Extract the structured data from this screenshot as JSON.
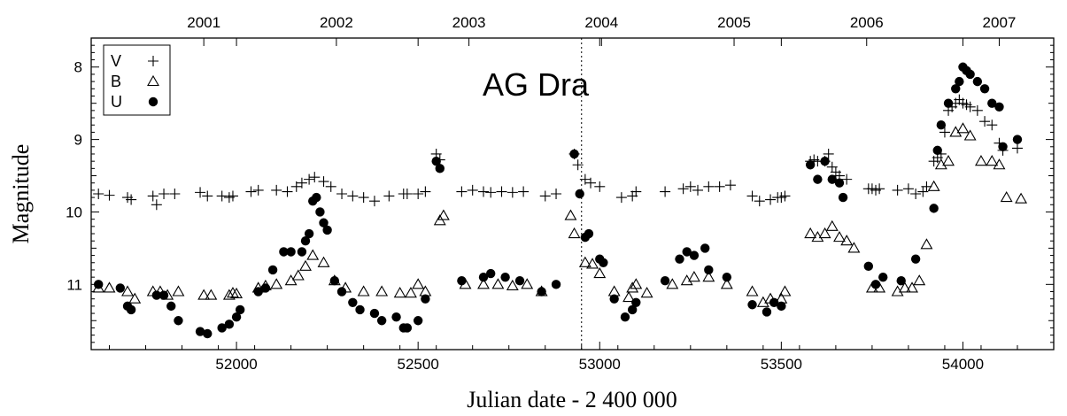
{
  "chart_data": {
    "type": "scatter",
    "title": "AG Dra",
    "xlabel": "Julian date - 2 400 000",
    "ylabel": "Magnitude",
    "xlim": [
      51600,
      54250
    ],
    "ylim": [
      11.9,
      7.6
    ],
    "y_inverted": true,
    "x_ticks": [
      52000,
      52500,
      53000,
      53500,
      54000
    ],
    "y_ticks": [
      8,
      9,
      10,
      11
    ],
    "top_axis": {
      "labels": [
        "2001",
        "2002",
        "2003",
        "2004",
        "2005",
        "2006",
        "2007"
      ],
      "positions": [
        51910,
        52275,
        52640,
        53005,
        53370,
        53735,
        54100
      ]
    },
    "reference_line_x": 52950,
    "legend_position": "top-left",
    "series": [
      {
        "name": "V",
        "marker": "plus",
        "points": [
          [
            51620,
            9.75
          ],
          [
            51650,
            9.77
          ],
          [
            51700,
            9.8
          ],
          [
            51710,
            9.83
          ],
          [
            51770,
            9.78
          ],
          [
            51780,
            9.9
          ],
          [
            51800,
            9.75
          ],
          [
            51830,
            9.75
          ],
          [
            51900,
            9.73
          ],
          [
            51920,
            9.78
          ],
          [
            51960,
            9.78
          ],
          [
            51980,
            9.8
          ],
          [
            51990,
            9.78
          ],
          [
            52040,
            9.72
          ],
          [
            52060,
            9.7
          ],
          [
            52110,
            9.7
          ],
          [
            52140,
            9.72
          ],
          [
            52165,
            9.65
          ],
          [
            52180,
            9.6
          ],
          [
            52200,
            9.55
          ],
          [
            52215,
            9.52
          ],
          [
            52240,
            9.58
          ],
          [
            52260,
            9.65
          ],
          [
            52290,
            9.75
          ],
          [
            52320,
            9.78
          ],
          [
            52350,
            9.8
          ],
          [
            52380,
            9.85
          ],
          [
            52420,
            9.78
          ],
          [
            52460,
            9.75
          ],
          [
            52470,
            9.75
          ],
          [
            52500,
            9.75
          ],
          [
            52520,
            9.72
          ],
          [
            52550,
            9.2
          ],
          [
            52560,
            9.28
          ],
          [
            52620,
            9.72
          ],
          [
            52650,
            9.7
          ],
          [
            52680,
            9.72
          ],
          [
            52700,
            9.73
          ],
          [
            52730,
            9.72
          ],
          [
            52760,
            9.73
          ],
          [
            52790,
            9.72
          ],
          [
            52850,
            9.78
          ],
          [
            52880,
            9.75
          ],
          [
            52930,
            9.2
          ],
          [
            52940,
            9.35
          ],
          [
            52960,
            9.55
          ],
          [
            52975,
            9.6
          ],
          [
            53000,
            9.65
          ],
          [
            53060,
            9.8
          ],
          [
            53090,
            9.78
          ],
          [
            53100,
            9.72
          ],
          [
            53180,
            9.72
          ],
          [
            53230,
            9.68
          ],
          [
            53250,
            9.65
          ],
          [
            53270,
            9.7
          ],
          [
            53300,
            9.65
          ],
          [
            53330,
            9.65
          ],
          [
            53360,
            9.63
          ],
          [
            53420,
            9.78
          ],
          [
            53440,
            9.85
          ],
          [
            53470,
            9.83
          ],
          [
            53490,
            9.8
          ],
          [
            53500,
            9.8
          ],
          [
            53510,
            9.78
          ],
          [
            53580,
            9.3
          ],
          [
            53590,
            9.28
          ],
          [
            53600,
            9.3
          ],
          [
            53620,
            9.3
          ],
          [
            53630,
            9.2
          ],
          [
            53640,
            9.38
          ],
          [
            53650,
            9.45
          ],
          [
            53660,
            9.5
          ],
          [
            53680,
            9.55
          ],
          [
            53740,
            9.68
          ],
          [
            53750,
            9.68
          ],
          [
            53760,
            9.7
          ],
          [
            53770,
            9.68
          ],
          [
            53820,
            9.7
          ],
          [
            53850,
            9.68
          ],
          [
            53870,
            9.75
          ],
          [
            53890,
            9.72
          ],
          [
            53900,
            9.65
          ],
          [
            53920,
            9.3
          ],
          [
            53930,
            9.25
          ],
          [
            53940,
            9.2
          ],
          [
            53950,
            8.9
          ],
          [
            53960,
            8.6
          ],
          [
            53970,
            8.55
          ],
          [
            53980,
            8.5
          ],
          [
            53990,
            8.45
          ],
          [
            54000,
            8.5
          ],
          [
            54010,
            8.52
          ],
          [
            54020,
            8.55
          ],
          [
            54040,
            8.6
          ],
          [
            54060,
            8.75
          ],
          [
            54080,
            8.8
          ],
          [
            54100,
            9.05
          ],
          [
            54110,
            9.15
          ],
          [
            54150,
            9.12
          ]
        ]
      },
      {
        "name": "B",
        "marker": "triangle",
        "points": [
          [
            51620,
            11.05
          ],
          [
            51650,
            11.05
          ],
          [
            51700,
            11.1
          ],
          [
            51720,
            11.2
          ],
          [
            51770,
            11.1
          ],
          [
            51790,
            11.1
          ],
          [
            51810,
            11.15
          ],
          [
            51840,
            11.1
          ],
          [
            51910,
            11.15
          ],
          [
            51930,
            11.15
          ],
          [
            51980,
            11.15
          ],
          [
            51990,
            11.12
          ],
          [
            52000,
            11.13
          ],
          [
            52060,
            11.05
          ],
          [
            52080,
            11.02
          ],
          [
            52110,
            11.0
          ],
          [
            52150,
            10.95
          ],
          [
            52170,
            10.88
          ],
          [
            52190,
            10.75
          ],
          [
            52210,
            10.6
          ],
          [
            52240,
            10.7
          ],
          [
            52270,
            10.95
          ],
          [
            52300,
            11.05
          ],
          [
            52350,
            11.1
          ],
          [
            52400,
            11.1
          ],
          [
            52450,
            11.12
          ],
          [
            52480,
            11.12
          ],
          [
            52500,
            11.0
          ],
          [
            52520,
            11.1
          ],
          [
            52560,
            10.12
          ],
          [
            52570,
            10.05
          ],
          [
            52630,
            11.0
          ],
          [
            52680,
            11.0
          ],
          [
            52720,
            11.0
          ],
          [
            52760,
            11.02
          ],
          [
            52800,
            11.0
          ],
          [
            52840,
            11.1
          ],
          [
            52920,
            10.05
          ],
          [
            52930,
            10.3
          ],
          [
            52960,
            10.7
          ],
          [
            52980,
            10.72
          ],
          [
            53000,
            10.85
          ],
          [
            53040,
            11.1
          ],
          [
            53080,
            11.18
          ],
          [
            53090,
            11.05
          ],
          [
            53100,
            11.0
          ],
          [
            53130,
            11.12
          ],
          [
            53200,
            11.0
          ],
          [
            53240,
            10.95
          ],
          [
            53260,
            10.9
          ],
          [
            53300,
            10.9
          ],
          [
            53350,
            11.0
          ],
          [
            53420,
            11.1
          ],
          [
            53450,
            11.25
          ],
          [
            53470,
            11.2
          ],
          [
            53500,
            11.2
          ],
          [
            53510,
            11.1
          ],
          [
            53580,
            10.3
          ],
          [
            53600,
            10.35
          ],
          [
            53620,
            10.3
          ],
          [
            53640,
            10.2
          ],
          [
            53660,
            10.35
          ],
          [
            53680,
            10.4
          ],
          [
            53700,
            10.5
          ],
          [
            53750,
            11.05
          ],
          [
            53770,
            11.05
          ],
          [
            53820,
            11.1
          ],
          [
            53840,
            11.05
          ],
          [
            53860,
            11.05
          ],
          [
            53880,
            10.95
          ],
          [
            53900,
            10.45
          ],
          [
            53920,
            9.65
          ],
          [
            53940,
            9.35
          ],
          [
            53960,
            9.3
          ],
          [
            53980,
            8.9
          ],
          [
            54000,
            8.85
          ],
          [
            54020,
            8.95
          ],
          [
            54050,
            9.3
          ],
          [
            54080,
            9.3
          ],
          [
            54100,
            9.35
          ],
          [
            54120,
            9.8
          ],
          [
            54160,
            9.82
          ]
        ]
      },
      {
        "name": "U",
        "marker": "circle",
        "points": [
          [
            51620,
            11.0
          ],
          [
            51680,
            11.05
          ],
          [
            51700,
            11.3
          ],
          [
            51710,
            11.35
          ],
          [
            51780,
            11.15
          ],
          [
            51800,
            11.15
          ],
          [
            51820,
            11.3
          ],
          [
            51840,
            11.5
          ],
          [
            51900,
            11.65
          ],
          [
            51920,
            11.68
          ],
          [
            51960,
            11.6
          ],
          [
            51980,
            11.55
          ],
          [
            52000,
            11.45
          ],
          [
            52010,
            11.35
          ],
          [
            52060,
            11.1
          ],
          [
            52080,
            11.05
          ],
          [
            52100,
            10.8
          ],
          [
            52130,
            10.55
          ],
          [
            52150,
            10.55
          ],
          [
            52180,
            10.55
          ],
          [
            52190,
            10.4
          ],
          [
            52200,
            10.3
          ],
          [
            52210,
            9.85
          ],
          [
            52220,
            9.8
          ],
          [
            52230,
            10.0
          ],
          [
            52240,
            10.15
          ],
          [
            52250,
            10.25
          ],
          [
            52270,
            10.95
          ],
          [
            52290,
            11.1
          ],
          [
            52320,
            11.25
          ],
          [
            52340,
            11.35
          ],
          [
            52380,
            11.4
          ],
          [
            52400,
            11.5
          ],
          [
            52440,
            11.45
          ],
          [
            52460,
            11.6
          ],
          [
            52470,
            11.6
          ],
          [
            52500,
            11.5
          ],
          [
            52520,
            11.2
          ],
          [
            52550,
            9.3
          ],
          [
            52560,
            9.4
          ],
          [
            52620,
            10.95
          ],
          [
            52680,
            10.9
          ],
          [
            52700,
            10.85
          ],
          [
            52740,
            10.9
          ],
          [
            52780,
            10.95
          ],
          [
            52840,
            11.1
          ],
          [
            52880,
            11.0
          ],
          [
            52930,
            9.2
          ],
          [
            52945,
            9.75
          ],
          [
            52960,
            10.35
          ],
          [
            52970,
            10.3
          ],
          [
            53000,
            10.65
          ],
          [
            53010,
            10.7
          ],
          [
            53040,
            11.2
          ],
          [
            53070,
            11.45
          ],
          [
            53090,
            11.35
          ],
          [
            53100,
            11.25
          ],
          [
            53180,
            10.95
          ],
          [
            53220,
            10.65
          ],
          [
            53240,
            10.55
          ],
          [
            53260,
            10.6
          ],
          [
            53290,
            10.5
          ],
          [
            53300,
            10.8
          ],
          [
            53350,
            10.9
          ],
          [
            53420,
            11.28
          ],
          [
            53460,
            11.38
          ],
          [
            53480,
            11.25
          ],
          [
            53500,
            11.3
          ],
          [
            53580,
            9.35
          ],
          [
            53600,
            9.55
          ],
          [
            53620,
            9.3
          ],
          [
            53640,
            9.55
          ],
          [
            53660,
            9.6
          ],
          [
            53670,
            9.8
          ],
          [
            53740,
            10.75
          ],
          [
            53760,
            11.0
          ],
          [
            53780,
            10.9
          ],
          [
            53830,
            10.95
          ],
          [
            53870,
            10.65
          ],
          [
            53920,
            9.95
          ],
          [
            53930,
            9.15
          ],
          [
            53940,
            8.8
          ],
          [
            53960,
            8.5
          ],
          [
            53980,
            8.3
          ],
          [
            53990,
            8.2
          ],
          [
            54000,
            8.0
          ],
          [
            54010,
            8.05
          ],
          [
            54020,
            8.1
          ],
          [
            54040,
            8.2
          ],
          [
            54060,
            8.3
          ],
          [
            54080,
            8.5
          ],
          [
            54100,
            8.55
          ],
          [
            54110,
            9.1
          ],
          [
            54150,
            9.0
          ]
        ]
      }
    ]
  }
}
